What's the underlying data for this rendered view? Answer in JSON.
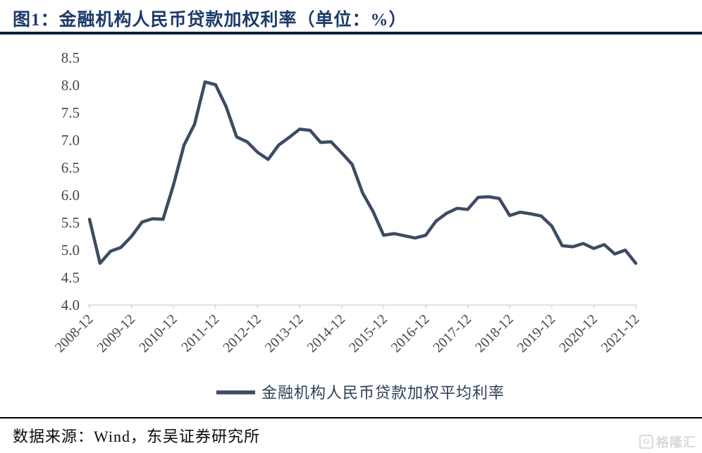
{
  "figure": {
    "title": "图1：金融机构人民币贷款加权利率（单位：%）"
  },
  "legend": {
    "label": "金融机构人民币贷款加权平均利率"
  },
  "footer": {
    "source": "数据来源：Wind，东吴证券研究所"
  },
  "watermark": {
    "icon": "gelonghui-logo-icon",
    "icon_letter": "G",
    "text": "格隆汇"
  },
  "colors": {
    "title": "#1c3a6b",
    "title_rule": "#0c1c3a",
    "series": "#3d4c63",
    "axis_line": "#d9d9d9",
    "axis_label": "#474747",
    "legend_text": "#2c4257",
    "footer_text": "#0a0a0a",
    "watermark": "#d9d9d9"
  },
  "chart_data": {
    "type": "line",
    "title": "金融机构人民币贷款加权利率（单位：%）",
    "xlabel": "",
    "ylabel": "",
    "unit": "%",
    "ylim": [
      4.0,
      8.5
    ],
    "ytick_step": 0.5,
    "grid": "off",
    "legend_position": "bottom",
    "xticks_shown": [
      "2008-12",
      "2009-12",
      "2010-12",
      "2011-12",
      "2012-12",
      "2013-12",
      "2014-12",
      "2015-12",
      "2016-12",
      "2017-12",
      "2018-12",
      "2019-12",
      "2020-12",
      "2021-12"
    ],
    "x": [
      "2008-12",
      "2009-03",
      "2009-06",
      "2009-09",
      "2009-12",
      "2010-03",
      "2010-06",
      "2010-09",
      "2010-12",
      "2011-03",
      "2011-06",
      "2011-09",
      "2011-12",
      "2012-03",
      "2012-06",
      "2012-09",
      "2012-12",
      "2013-03",
      "2013-06",
      "2013-09",
      "2013-12",
      "2014-03",
      "2014-06",
      "2014-09",
      "2014-12",
      "2015-03",
      "2015-06",
      "2015-09",
      "2015-12",
      "2016-03",
      "2016-06",
      "2016-09",
      "2016-12",
      "2017-03",
      "2017-06",
      "2017-09",
      "2017-12",
      "2018-03",
      "2018-06",
      "2018-09",
      "2018-12",
      "2019-03",
      "2019-06",
      "2019-09",
      "2019-12",
      "2020-03",
      "2020-06",
      "2020-09",
      "2020-12",
      "2021-03",
      "2021-06",
      "2021-09",
      "2021-12"
    ],
    "series": [
      {
        "name": "金融机构人民币贷款加权平均利率",
        "values": [
          5.56,
          4.76,
          4.98,
          5.05,
          5.25,
          5.51,
          5.57,
          5.56,
          6.19,
          6.91,
          7.29,
          8.06,
          8.01,
          7.61,
          7.06,
          6.97,
          6.78,
          6.65,
          6.91,
          7.05,
          7.2,
          7.18,
          6.96,
          6.97,
          6.77,
          6.56,
          6.04,
          5.7,
          5.27,
          5.3,
          5.26,
          5.22,
          5.27,
          5.53,
          5.67,
          5.76,
          5.74,
          5.96,
          5.97,
          5.94,
          5.63,
          5.69,
          5.66,
          5.62,
          5.44,
          5.08,
          5.06,
          5.12,
          5.03,
          5.1,
          4.93,
          5.0,
          4.76
        ]
      }
    ]
  }
}
